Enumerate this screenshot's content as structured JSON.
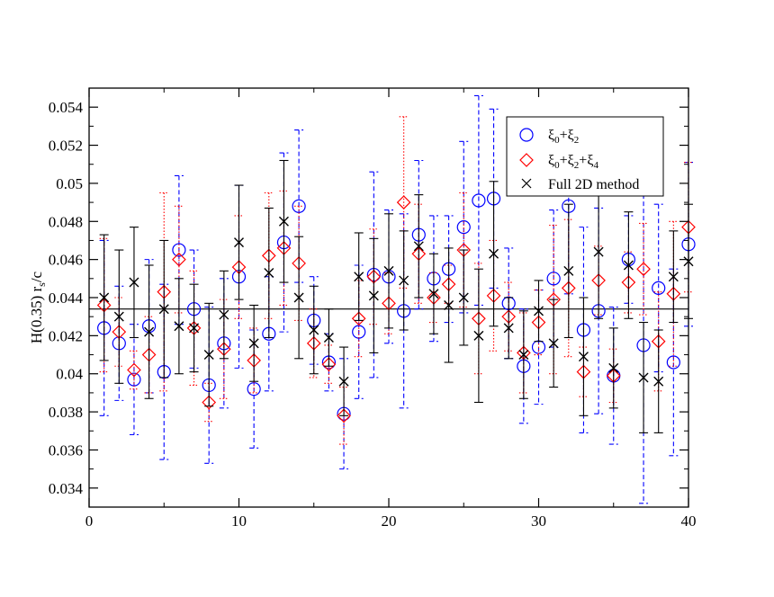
{
  "chart_data": {
    "type": "scatter",
    "title": "",
    "xlabel": "",
    "ylabel": "H(0.35) r_s/c",
    "ylabel_main": "H(0.35) r",
    "ylabel_sub": "s",
    "ylabel_tail": "/c",
    "xlim": [
      0,
      40
    ],
    "ylim": [
      0.033,
      0.055
    ],
    "xticks": [
      0,
      10,
      20,
      30,
      40
    ],
    "xtick_labels": [
      "0",
      "10",
      "20",
      "30",
      "40"
    ],
    "yticks": [
      0.034,
      0.036,
      0.038,
      0.04,
      0.042,
      0.044,
      0.046,
      0.048,
      0.05,
      0.052,
      0.054
    ],
    "ytick_labels": [
      "0.034",
      "0.036",
      "0.038",
      "0.04",
      "0.042",
      "0.044",
      "0.046",
      "0.048",
      "0.05",
      "0.052",
      "0.054"
    ],
    "reference_line": 0.0434,
    "legend_position": "top-right",
    "legend": [
      {
        "label": "ξ0+ξ2",
        "main": "ξ",
        "sub1": "0",
        "plus1": "+ξ",
        "sub2": "2",
        "plus2": "",
        "sub3": "",
        "marker": "circle",
        "color": "#0000ff"
      },
      {
        "label": "ξ0+ξ2+ξ4",
        "main": "ξ",
        "sub1": "0",
        "plus1": "+ξ",
        "sub2": "2",
        "plus2": "+ξ",
        "sub3": "4",
        "marker": "diamond",
        "color": "#ff0000"
      },
      {
        "label": "Full 2D method",
        "main": "Full 2D method",
        "sub1": "",
        "plus1": "",
        "sub2": "",
        "plus2": "",
        "sub3": "",
        "marker": "x",
        "color": "#000000"
      }
    ],
    "series": [
      {
        "name": "ξ0+ξ2",
        "marker": "circle",
        "color": "#0000ff",
        "line": "dashed",
        "x": [
          1,
          2,
          3,
          4,
          5,
          6,
          7,
          8,
          9,
          10,
          11,
          12,
          13,
          14,
          15,
          16,
          17,
          18,
          19,
          20,
          21,
          22,
          23,
          24,
          25,
          26,
          27,
          28,
          29,
          30,
          31,
          32,
          33,
          34,
          35,
          36,
          37,
          38,
          39,
          40
        ],
        "y": [
          0.0424,
          0.0416,
          0.0397,
          0.0425,
          0.0401,
          0.0465,
          0.0434,
          0.0394,
          0.0416,
          0.0451,
          0.0392,
          0.0421,
          0.0469,
          0.0488,
          0.0428,
          0.0406,
          0.0379,
          0.0422,
          0.0452,
          0.0451,
          0.0433,
          0.0473,
          0.045,
          0.0455,
          0.0477,
          0.0491,
          0.0492,
          0.0437,
          0.0404,
          0.0414,
          0.045,
          0.0488,
          0.0423,
          0.0433,
          0.0399,
          0.046,
          0.0415,
          0.0445,
          0.0406,
          0.0468
        ],
        "err": [
          0.0046,
          0.003,
          0.0029,
          0.0035,
          0.0046,
          0.0039,
          0.0031,
          0.0041,
          0.0034,
          0.0048,
          0.0031,
          0.003,
          0.0047,
          0.004,
          0.0023,
          0.0015,
          0.0029,
          0.0035,
          0.0054,
          0.0035,
          0.0051,
          0.0039,
          0.0033,
          0.0028,
          0.0045,
          0.0055,
          0.0047,
          0.0029,
          0.003,
          0.003,
          0.0036,
          0.0046,
          0.0054,
          0.0054,
          0.0036,
          0.0023,
          0.0083,
          0.0044,
          0.0049,
          0.0043
        ]
      },
      {
        "name": "ξ0+ξ2+ξ4",
        "marker": "diamond",
        "color": "#ff0000",
        "line": "dotted",
        "x": [
          1,
          2,
          3,
          4,
          5,
          6,
          7,
          8,
          9,
          10,
          11,
          12,
          13,
          14,
          15,
          16,
          17,
          18,
          19,
          20,
          21,
          22,
          23,
          24,
          25,
          26,
          27,
          28,
          29,
          30,
          31,
          32,
          33,
          34,
          35,
          36,
          37,
          38,
          39,
          40
        ],
        "y": [
          0.0436,
          0.0422,
          0.0402,
          0.041,
          0.0443,
          0.046,
          0.0424,
          0.0385,
          0.0413,
          0.0456,
          0.0407,
          0.0462,
          0.0466,
          0.0458,
          0.0416,
          0.0405,
          0.0378,
          0.0429,
          0.0451,
          0.0437,
          0.049,
          0.0463,
          0.044,
          0.0447,
          0.0465,
          0.0429,
          0.0441,
          0.043,
          0.0411,
          0.0427,
          0.0439,
          0.0445,
          0.0401,
          0.0449,
          0.0399,
          0.0448,
          0.0455,
          0.0417,
          0.0442,
          0.0477
        ],
        "err": [
          0.0035,
          0.0018,
          0.001,
          0.002,
          0.0052,
          0.0028,
          0.003,
          0.001,
          0.0026,
          0.0027,
          0.0017,
          0.0033,
          0.003,
          0.003,
          0.0018,
          0.001,
          0.0015,
          0.002,
          0.0025,
          0.0016,
          0.0045,
          0.0026,
          0.0013,
          0.001,
          0.003,
          0.0029,
          0.0029,
          0.0018,
          0.0021,
          0.0017,
          0.0039,
          0.0036,
          0.0013,
          0.0018,
          0.0014,
          0.0016,
          0.0024,
          0.0026,
          0.0038,
          0.0034
        ]
      },
      {
        "name": "Full 2D method",
        "marker": "x",
        "color": "#000000",
        "line": "solid",
        "x": [
          1,
          2,
          3,
          4,
          5,
          6,
          7,
          8,
          9,
          10,
          11,
          12,
          13,
          14,
          15,
          16,
          17,
          18,
          19,
          20,
          21,
          22,
          23,
          24,
          25,
          26,
          27,
          28,
          29,
          30,
          31,
          32,
          33,
          34,
          35,
          36,
          37,
          38,
          39,
          40
        ],
        "y": [
          0.044,
          0.043,
          0.0448,
          0.0422,
          0.0434,
          0.0425,
          0.0424,
          0.041,
          0.0431,
          0.0469,
          0.0416,
          0.0453,
          0.048,
          0.044,
          0.0423,
          0.0419,
          0.0396,
          0.0451,
          0.0441,
          0.0454,
          0.0449,
          0.0467,
          0.0442,
          0.0436,
          0.044,
          0.042,
          0.0463,
          0.0424,
          0.041,
          0.0433,
          0.0416,
          0.0454,
          0.0409,
          0.0464,
          0.0403,
          0.0457,
          0.0398,
          0.0396,
          0.0451,
          0.0459
        ],
        "err": [
          0.0033,
          0.0035,
          0.0029,
          0.0035,
          0.0036,
          0.0025,
          0.0023,
          0.0027,
          0.0023,
          0.003,
          0.002,
          0.0034,
          0.0032,
          0.0032,
          0.0023,
          0.0015,
          0.0018,
          0.0023,
          0.003,
          0.003,
          0.0026,
          0.0027,
          0.0021,
          0.003,
          0.0025,
          0.0035,
          0.0038,
          0.0016,
          0.0023,
          0.0016,
          0.0023,
          0.0035,
          0.0031,
          0.0035,
          0.0021,
          0.0028,
          0.0029,
          0.0027,
          0.0024,
          0.003
        ]
      }
    ]
  }
}
